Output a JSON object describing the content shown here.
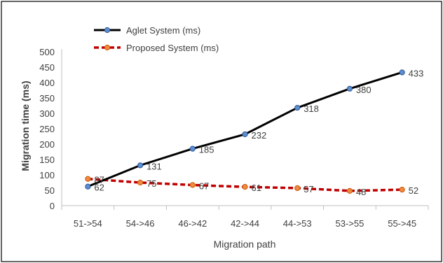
{
  "chart_data": {
    "type": "line",
    "title": "",
    "xlabel": "Migration path",
    "ylabel": "Migration time (ms)",
    "categories": [
      "51->54",
      "54->46",
      "46->42",
      "42->44",
      "44->53",
      "53->55",
      "55->45"
    ],
    "ylim": [
      0,
      500
    ],
    "yticks": [
      0,
      50,
      100,
      150,
      200,
      250,
      300,
      350,
      400,
      450,
      500
    ],
    "grid": false,
    "legend_position": "top-left",
    "series": [
      {
        "name": "Aglet System (ms)",
        "values": [
          62,
          131,
          185,
          232,
          318,
          380,
          433
        ],
        "labels": [
          "62",
          "131",
          "185",
          "232",
          "318",
          "380",
          "433"
        ],
        "line_color": "#000000",
        "marker_color": "#5b8fd0",
        "dashed": false
      },
      {
        "name": "Proposed System (ms)",
        "values": [
          87,
          75,
          67,
          61,
          57,
          48,
          52
        ],
        "labels": [
          "87",
          "75",
          "67",
          "61",
          "57",
          "48",
          "52"
        ],
        "line_color": "#c00000",
        "marker_color": "#f08a3c",
        "dashed": true
      }
    ]
  }
}
